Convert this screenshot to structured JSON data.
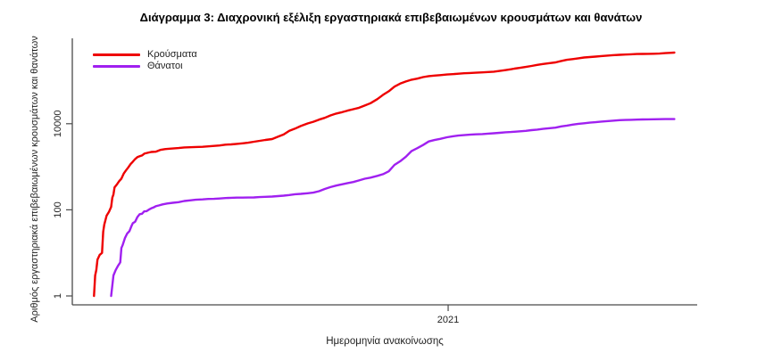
{
  "chart_data": {
    "type": "line",
    "title": "Διάγραμμα 3: Διαχρονική εξέλιξη εργαστηριακά επιβεβαιωμένων κρουσμάτων και θανάτων",
    "xlabel": "Ημερομηνία ανακοίνωσης",
    "ylabel": "Αριθμός εργαστηριακά επιβεβαιωμένων κρουσμάτων και θανάτων",
    "y_scale": "log10",
    "x_scale": "date",
    "grid": false,
    "legend_position": "top-left-inside",
    "axis_color": "#4a4a4a",
    "text_color": "#1f1f1f",
    "x_domain": [
      "2020-02-07",
      "2021-08-07"
    ],
    "y_domain": [
      1,
      1000000
    ],
    "y_ticks": [
      {
        "value": 1,
        "label": "1"
      },
      {
        "value": 100,
        "label": "100"
      },
      {
        "value": 10000,
        "label": "10000"
      }
    ],
    "x_ticks": [
      {
        "date": "2021-01-01",
        "label": "2021"
      }
    ],
    "series": [
      {
        "id": "cases",
        "name": "Κρούσματα",
        "color": "#ee0000",
        "points": [
          [
            "2020-02-26",
            1
          ],
          [
            "2020-02-27",
            3
          ],
          [
            "2020-02-28",
            4
          ],
          [
            "2020-02-29",
            7
          ],
          [
            "2020-03-02",
            9
          ],
          [
            "2020-03-04",
            10
          ],
          [
            "2020-03-05",
            31
          ],
          [
            "2020-03-06",
            45
          ],
          [
            "2020-03-08",
            73
          ],
          [
            "2020-03-10",
            89
          ],
          [
            "2020-03-12",
            117
          ],
          [
            "2020-03-13",
            190
          ],
          [
            "2020-03-14",
            228
          ],
          [
            "2020-03-15",
            331
          ],
          [
            "2020-03-17",
            387
          ],
          [
            "2020-03-19",
            464
          ],
          [
            "2020-03-21",
            530
          ],
          [
            "2020-03-23",
            695
          ],
          [
            "2020-03-25",
            821
          ],
          [
            "2020-03-27",
            966
          ],
          [
            "2020-03-29",
            1156
          ],
          [
            "2020-03-31",
            1314
          ],
          [
            "2020-04-02",
            1514
          ],
          [
            "2020-04-04",
            1673
          ],
          [
            "2020-04-06",
            1755
          ],
          [
            "2020-04-08",
            1832
          ],
          [
            "2020-04-10",
            2011
          ],
          [
            "2020-04-13",
            2114
          ],
          [
            "2020-04-16",
            2207
          ],
          [
            "2020-04-20",
            2235
          ],
          [
            "2020-04-24",
            2463
          ],
          [
            "2020-04-28",
            2566
          ],
          [
            "2020-04-30",
            2591
          ],
          [
            "2020-05-05",
            2663
          ],
          [
            "2020-05-10",
            2716
          ],
          [
            "2020-05-15",
            2810
          ],
          [
            "2020-05-20",
            2840
          ],
          [
            "2020-05-25",
            2878
          ],
          [
            "2020-05-31",
            2915
          ],
          [
            "2020-06-05",
            2980
          ],
          [
            "2020-06-10",
            3049
          ],
          [
            "2020-06-15",
            3121
          ],
          [
            "2020-06-20",
            3256
          ],
          [
            "2020-06-25",
            3310
          ],
          [
            "2020-06-30",
            3409
          ],
          [
            "2020-07-05",
            3511
          ],
          [
            "2020-07-10",
            3622
          ],
          [
            "2020-07-15",
            3826
          ],
          [
            "2020-07-20",
            4007
          ],
          [
            "2020-07-25",
            4193
          ],
          [
            "2020-07-31",
            4401
          ],
          [
            "2020-08-05",
            4974
          ],
          [
            "2020-08-10",
            5623
          ],
          [
            "2020-08-15",
            6858
          ],
          [
            "2020-08-20",
            7684
          ],
          [
            "2020-08-25",
            8819
          ],
          [
            "2020-08-31",
            10134
          ],
          [
            "2020-09-05",
            11124
          ],
          [
            "2020-09-10",
            12452
          ],
          [
            "2020-09-15",
            13730
          ],
          [
            "2020-09-20",
            15595
          ],
          [
            "2020-09-25",
            17228
          ],
          [
            "2020-09-30",
            18475
          ],
          [
            "2020-10-05",
            20142
          ],
          [
            "2020-10-10",
            21772
          ],
          [
            "2020-10-15",
            23495
          ],
          [
            "2020-10-20",
            26469
          ],
          [
            "2020-10-25",
            29992
          ],
          [
            "2020-10-31",
            37196
          ],
          [
            "2020-11-05",
            46892
          ],
          [
            "2020-11-10",
            56698
          ],
          [
            "2020-11-15",
            72510
          ],
          [
            "2020-11-20",
            85261
          ],
          [
            "2020-11-25",
            95683
          ],
          [
            "2020-11-30",
            105271
          ],
          [
            "2020-12-05",
            111537
          ],
          [
            "2020-12-10",
            120926
          ],
          [
            "2020-12-15",
            127557
          ],
          [
            "2020-12-20",
            131296
          ],
          [
            "2020-12-25",
            134336
          ],
          [
            "2020-12-31",
            138850
          ],
          [
            "2021-01-05",
            141453
          ],
          [
            "2021-01-10",
            144738
          ],
          [
            "2021-01-15",
            148607
          ],
          [
            "2021-01-20",
            150479
          ],
          [
            "2021-01-25",
            152979
          ],
          [
            "2021-01-31",
            155678
          ],
          [
            "2021-02-05",
            158716
          ],
          [
            "2021-02-10",
            162037
          ],
          [
            "2021-02-15",
            168256
          ],
          [
            "2021-02-20",
            175681
          ],
          [
            "2021-02-25",
            183686
          ],
          [
            "2021-02-28",
            190235
          ],
          [
            "2021-03-05",
            198278
          ],
          [
            "2021-03-10",
            208073
          ],
          [
            "2021-03-15",
            220000
          ],
          [
            "2021-03-20",
            232062
          ],
          [
            "2021-03-25",
            243599
          ],
          [
            "2021-03-31",
            255288
          ],
          [
            "2021-04-05",
            266230
          ],
          [
            "2021-04-10",
            287459
          ],
          [
            "2021-04-15",
            305732
          ],
          [
            "2021-04-20",
            316879
          ],
          [
            "2021-04-25",
            331073
          ],
          [
            "2021-04-30",
            344917
          ],
          [
            "2021-05-05",
            353439
          ],
          [
            "2021-05-10",
            362004
          ],
          [
            "2021-05-15",
            372881
          ],
          [
            "2021-05-20",
            382062
          ],
          [
            "2021-05-25",
            390093
          ],
          [
            "2021-05-31",
            398587
          ],
          [
            "2021-06-05",
            404163
          ],
          [
            "2021-06-10",
            409368
          ],
          [
            "2021-06-15",
            415280
          ],
          [
            "2021-06-20",
            417253
          ],
          [
            "2021-06-25",
            419455
          ],
          [
            "2021-06-30",
            421266
          ],
          [
            "2021-07-05",
            425925
          ],
          [
            "2021-07-10",
            436705
          ],
          [
            "2021-07-14",
            441704
          ],
          [
            "2021-07-18",
            448523
          ]
        ]
      },
      {
        "id": "deaths",
        "name": "Θάνατοι",
        "color": "#a020f0",
        "points": [
          [
            "2020-03-12",
            1
          ],
          [
            "2020-03-14",
            3
          ],
          [
            "2020-03-16",
            4
          ],
          [
            "2020-03-18",
            5
          ],
          [
            "2020-03-20",
            6
          ],
          [
            "2020-03-21",
            13
          ],
          [
            "2020-03-22",
            15
          ],
          [
            "2020-03-24",
            22
          ],
          [
            "2020-03-26",
            28
          ],
          [
            "2020-03-28",
            32
          ],
          [
            "2020-03-30",
            43
          ],
          [
            "2020-03-31",
            49
          ],
          [
            "2020-04-02",
            53
          ],
          [
            "2020-04-04",
            68
          ],
          [
            "2020-04-06",
            79
          ],
          [
            "2020-04-08",
            81
          ],
          [
            "2020-04-10",
            92
          ],
          [
            "2020-04-12",
            93
          ],
          [
            "2020-04-14",
            101
          ],
          [
            "2020-04-16",
            108
          ],
          [
            "2020-04-18",
            113
          ],
          [
            "2020-04-20",
            121
          ],
          [
            "2020-04-23",
            127
          ],
          [
            "2020-04-26",
            134
          ],
          [
            "2020-04-30",
            140
          ],
          [
            "2020-05-05",
            146
          ],
          [
            "2020-05-10",
            151
          ],
          [
            "2020-05-15",
            160
          ],
          [
            "2020-05-20",
            166
          ],
          [
            "2020-05-25",
            171
          ],
          [
            "2020-05-31",
            175
          ],
          [
            "2020-06-05",
            179
          ],
          [
            "2020-06-10",
            180
          ],
          [
            "2020-06-15",
            183
          ],
          [
            "2020-06-20",
            188
          ],
          [
            "2020-06-25",
            190
          ],
          [
            "2020-06-30",
            192
          ],
          [
            "2020-07-05",
            192
          ],
          [
            "2020-07-10",
            193
          ],
          [
            "2020-07-15",
            194
          ],
          [
            "2020-07-20",
            198
          ],
          [
            "2020-07-25",
            201
          ],
          [
            "2020-07-31",
            203
          ],
          [
            "2020-08-05",
            208
          ],
          [
            "2020-08-10",
            213
          ],
          [
            "2020-08-15",
            221
          ],
          [
            "2020-08-20",
            230
          ],
          [
            "2020-08-25",
            235
          ],
          [
            "2020-08-31",
            243
          ],
          [
            "2020-09-05",
            251
          ],
          [
            "2020-09-10",
            271
          ],
          [
            "2020-09-15",
            305
          ],
          [
            "2020-09-20",
            338
          ],
          [
            "2020-09-25",
            366
          ],
          [
            "2020-09-30",
            391
          ],
          [
            "2020-10-05",
            417
          ],
          [
            "2020-10-10",
            442
          ],
          [
            "2020-10-15",
            482
          ],
          [
            "2020-10-20",
            528
          ],
          [
            "2020-10-25",
            559
          ],
          [
            "2020-10-31",
            615
          ],
          [
            "2020-11-05",
            673
          ],
          [
            "2020-11-10",
            784
          ],
          [
            "2020-11-15",
            1106
          ],
          [
            "2020-11-20",
            1347
          ],
          [
            "2020-11-25",
            1714
          ],
          [
            "2020-11-30",
            2321
          ],
          [
            "2020-12-05",
            2706
          ],
          [
            "2020-12-10",
            3194
          ],
          [
            "2020-12-15",
            3870
          ],
          [
            "2020-12-20",
            4172
          ],
          [
            "2020-12-25",
            4457
          ],
          [
            "2020-12-31",
            4838
          ],
          [
            "2021-01-05",
            5099
          ],
          [
            "2021-01-10",
            5302
          ],
          [
            "2021-01-15",
            5441
          ],
          [
            "2021-01-20",
            5570
          ],
          [
            "2021-01-25",
            5671
          ],
          [
            "2021-01-31",
            5764
          ],
          [
            "2021-02-05",
            5878
          ],
          [
            "2021-02-10",
            5997
          ],
          [
            "2021-02-15",
            6152
          ],
          [
            "2021-02-20",
            6321
          ],
          [
            "2021-02-25",
            6418
          ],
          [
            "2021-02-28",
            6504
          ],
          [
            "2021-03-05",
            6664
          ],
          [
            "2021-03-10",
            6843
          ],
          [
            "2021-03-15",
            7091
          ],
          [
            "2021-03-20",
            7297
          ],
          [
            "2021-03-25",
            7582
          ],
          [
            "2021-03-31",
            7880
          ],
          [
            "2021-04-05",
            8093
          ],
          [
            "2021-04-10",
            8680
          ],
          [
            "2021-04-15",
            9054
          ],
          [
            "2021-04-20",
            9540
          ],
          [
            "2021-04-25",
            9950
          ],
          [
            "2021-04-30",
            10242
          ],
          [
            "2021-05-05",
            10587
          ],
          [
            "2021-05-10",
            10847
          ],
          [
            "2021-05-15",
            11211
          ],
          [
            "2021-05-20",
            11471
          ],
          [
            "2021-05-25",
            11772
          ],
          [
            "2021-05-31",
            12095
          ],
          [
            "2021-06-05",
            12221
          ],
          [
            "2021-06-10",
            12331
          ],
          [
            "2021-06-15",
            12471
          ],
          [
            "2021-06-20",
            12561
          ],
          [
            "2021-06-25",
            12632
          ],
          [
            "2021-06-30",
            12710
          ],
          [
            "2021-07-05",
            12754
          ],
          [
            "2021-07-10",
            12795
          ],
          [
            "2021-07-14",
            12813
          ],
          [
            "2021-07-18",
            12835
          ]
        ]
      }
    ]
  }
}
